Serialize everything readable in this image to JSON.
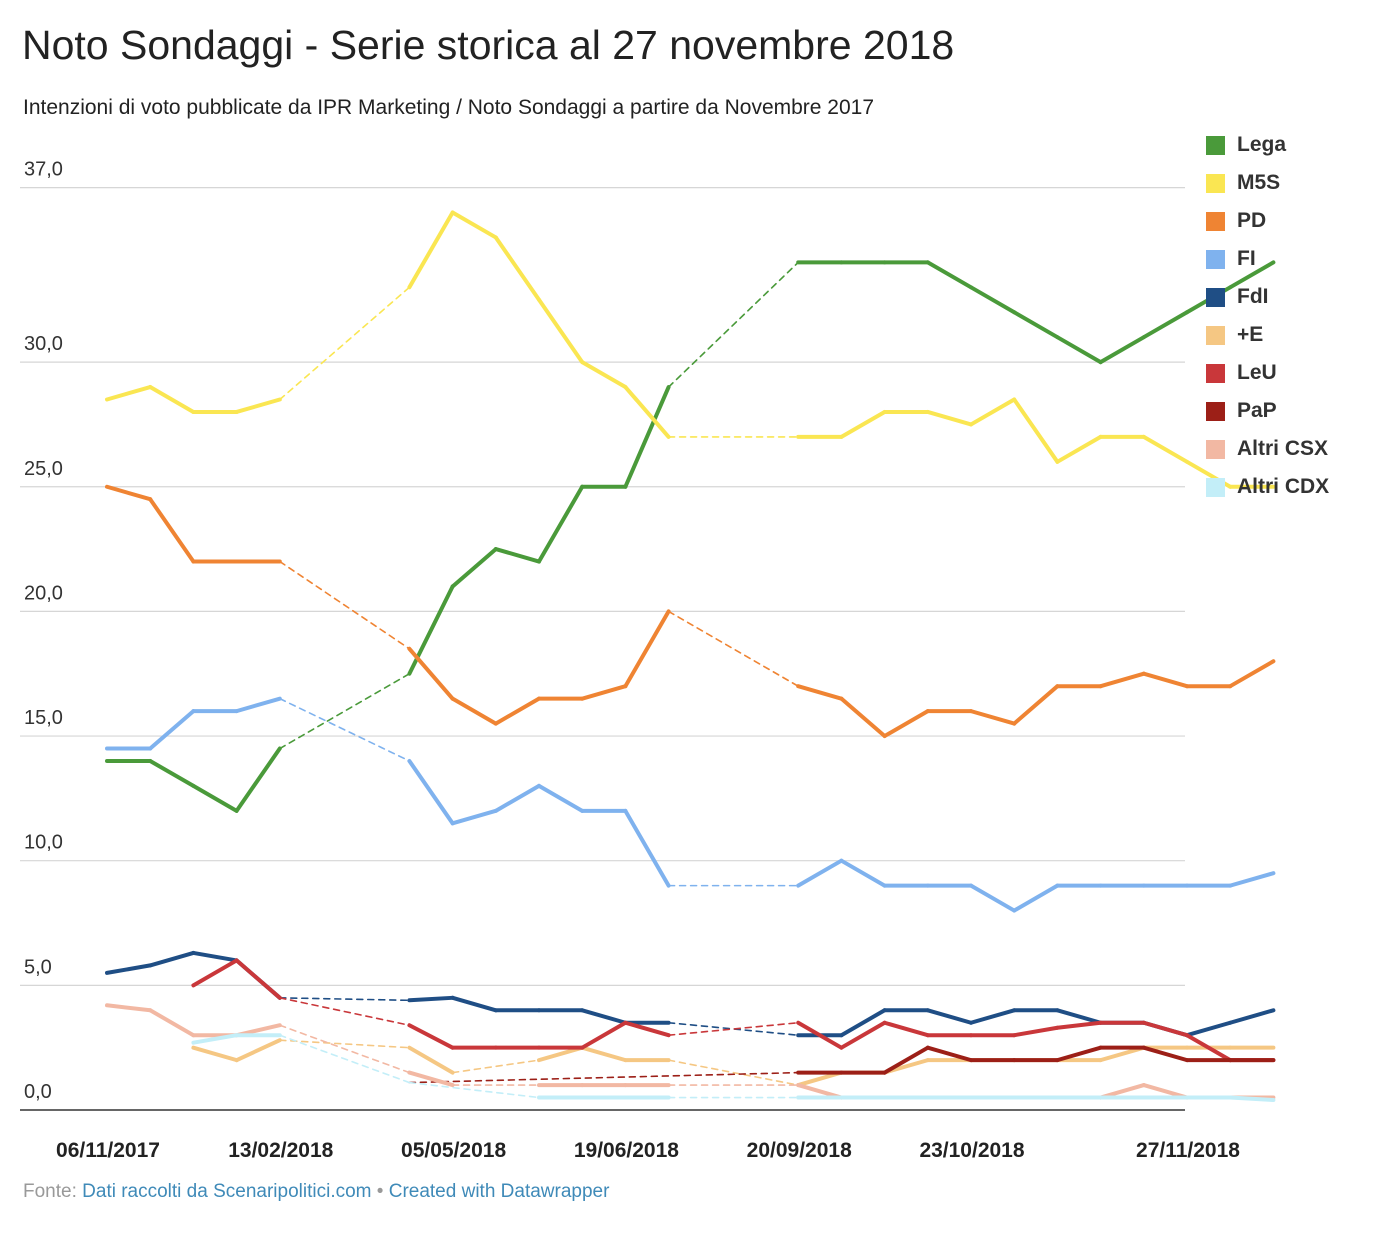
{
  "chart_data": {
    "type": "line",
    "title": "Noto Sondaggi - Serie storica al 27 novembre 2018",
    "subtitle": "Intenzioni di voto pubblicate da IPR Marketing / Noto Sondaggi a partire da Novembre 2017",
    "ylim": [
      0,
      37
    ],
    "yticks": [
      "0,0",
      "5,0",
      "10,0",
      "15,0",
      "20,0",
      "25,0",
      "30,0",
      "37,0"
    ],
    "ytick_values": [
      0,
      5,
      10,
      15,
      20,
      25,
      30,
      37
    ],
    "xlabels": [
      {
        "i": 0,
        "label": "06/11/2017"
      },
      {
        "i": 4,
        "label": "13/02/2018"
      },
      {
        "i": 8,
        "label": "05/05/2018"
      },
      {
        "i": 12,
        "label": "19/06/2018"
      },
      {
        "i": 16,
        "label": "20/09/2018"
      },
      {
        "i": 20,
        "label": "23/10/2018"
      },
      {
        "i": 25,
        "label": "27/11/2018"
      }
    ],
    "grid": true,
    "legend_position": "right",
    "series": [
      {
        "name": "Lega",
        "color": "#4a9a3a",
        "values": [
          14,
          14,
          13,
          12,
          14.5,
          null,
          null,
          17.5,
          21,
          22.5,
          22,
          25,
          25,
          29,
          null,
          null,
          34,
          34,
          34,
          34,
          33,
          32,
          31,
          30,
          31,
          32,
          33,
          34
        ]
      },
      {
        "name": "M5S",
        "color": "#fae652",
        "values": [
          28.5,
          29,
          28,
          28,
          28.5,
          null,
          null,
          33,
          36,
          35,
          32.5,
          30,
          29,
          27,
          null,
          null,
          27,
          27,
          28,
          28,
          27.5,
          28.5,
          26,
          27,
          27,
          26,
          25,
          25
        ]
      },
      {
        "name": "PD",
        "color": "#ef8433",
        "values": [
          25,
          24.5,
          22,
          22,
          22,
          null,
          null,
          18.5,
          16.5,
          15.5,
          16.5,
          16.5,
          17,
          20,
          null,
          null,
          17,
          16.5,
          15,
          16,
          16,
          15.5,
          17,
          17,
          17.5,
          17,
          17,
          18
        ]
      },
      {
        "name": "FI",
        "color": "#7fb2ee",
        "values": [
          14.5,
          14.5,
          16,
          16,
          16.5,
          null,
          null,
          14,
          11.5,
          12,
          13,
          12,
          12,
          9,
          null,
          null,
          9,
          10,
          9,
          9,
          9,
          8,
          9,
          9,
          9,
          9,
          9,
          9.5
        ]
      },
      {
        "name": "FdI",
        "color": "#1f4e85",
        "values": [
          5.5,
          5.8,
          6.3,
          6,
          4.5,
          null,
          null,
          4.4,
          4.5,
          4,
          4,
          4,
          3.5,
          3.5,
          null,
          null,
          3,
          3,
          4,
          4,
          3.5,
          4,
          4,
          3.5,
          3.5,
          3,
          3.5,
          4
        ]
      },
      {
        "name": "+E",
        "color": "#f5c783",
        "values": [
          null,
          null,
          2.5,
          2,
          2.8,
          null,
          null,
          2.5,
          1.5,
          null,
          2,
          2.5,
          2,
          2,
          null,
          null,
          1,
          1.5,
          1.5,
          2,
          2,
          2,
          2,
          2,
          2.5,
          2.5,
          2.5,
          2.5
        ]
      },
      {
        "name": "LeU",
        "color": "#c9373a",
        "values": [
          null,
          null,
          5,
          6,
          4.5,
          null,
          null,
          3.4,
          2.5,
          2.5,
          2.5,
          2.5,
          3.5,
          3,
          null,
          null,
          3.5,
          2.5,
          3.5,
          3,
          3,
          3,
          3.3,
          3.5,
          3.5,
          3,
          2,
          2
        ]
      },
      {
        "name": "PaP",
        "color": "#9c1f17",
        "values": [
          null,
          null,
          null,
          null,
          null,
          null,
          null,
          1.1,
          null,
          null,
          null,
          null,
          null,
          null,
          null,
          null,
          1.5,
          1.5,
          1.5,
          2.5,
          2,
          2,
          2,
          2.5,
          2.5,
          2,
          2,
          2
        ]
      },
      {
        "name": "Altri CSX",
        "color": "#f2b8a3",
        "values": [
          4.2,
          4,
          3,
          3,
          3.4,
          null,
          null,
          1.5,
          1,
          null,
          1,
          1,
          1,
          1,
          null,
          null,
          1,
          0.5,
          0.5,
          0.5,
          0.5,
          0.5,
          0.5,
          0.5,
          1,
          0.5,
          0.5,
          0.5
        ]
      },
      {
        "name": "Altri CDX",
        "color": "#c3eef8",
        "values": [
          null,
          null,
          2.7,
          3,
          3,
          null,
          null,
          1.1,
          null,
          null,
          0.5,
          0.5,
          0.5,
          0.5,
          null,
          null,
          0.5,
          0.5,
          0.5,
          0.5,
          0.5,
          0.5,
          0.5,
          0.5,
          0.5,
          0.5,
          0.5,
          0.4
        ]
      }
    ]
  },
  "footer": {
    "source_prefix": "Fonte:",
    "source_link": "Dati raccolti da Scenaripolitici.com",
    "separator": "•",
    "credit_link": "Created with Datawrapper"
  }
}
